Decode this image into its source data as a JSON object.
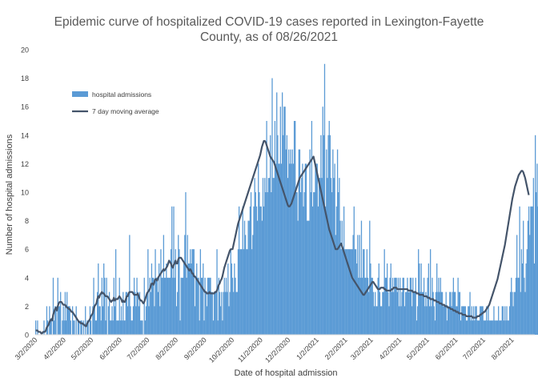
{
  "chart_data": {
    "type": "bar",
    "title_lines": [
      "Epidemic curve of hospitalized COVID-19 cases reported in Lexington-Fayette",
      "County, as of 08/26/2021"
    ],
    "xlabel": "Date of hospital admission",
    "ylabel": "Number of hospital admissions",
    "ylim": [
      0,
      20
    ],
    "yticks": [
      "0",
      "2",
      "4",
      "6",
      "8",
      "10",
      "12",
      "14",
      "16",
      "18",
      "20"
    ],
    "x_start_date": "2020-03-02",
    "x_end_date": "2021-08-26",
    "xticks": [
      "3/2/2020",
      "4/2/2020",
      "5/2/2020",
      "6/2/2020",
      "7/2/2020",
      "8/2/2020",
      "9/2/2020",
      "10/2/2020",
      "11/2/2020",
      "12/2/2020",
      "1/2/2021",
      "2/2/2021",
      "3/2/2021",
      "4/2/2021",
      "5/2/2021",
      "6/2/2021",
      "7/2/2021",
      "8/2/2021"
    ],
    "legend_position": "upper-left",
    "grid": false,
    "series": [
      {
        "name": "hospital admissions",
        "kind": "bar",
        "color": "#5b9bd5",
        "values": [
          1,
          0,
          1,
          0,
          0,
          0,
          0,
          0,
          0,
          1,
          0,
          0,
          2,
          1,
          0,
          2,
          1,
          1,
          0,
          4,
          1,
          2,
          2,
          0,
          4,
          2,
          2,
          3,
          0,
          1,
          2,
          1,
          3,
          1,
          3,
          2,
          2,
          2,
          1,
          0,
          2,
          1,
          1,
          0,
          2,
          0,
          1,
          1,
          0,
          1,
          1,
          0,
          1,
          0,
          2,
          0,
          1,
          1,
          0,
          2,
          1,
          0,
          2,
          4,
          2,
          1,
          1,
          3,
          5,
          2,
          2,
          1,
          4,
          2,
          5,
          4,
          1,
          4,
          0,
          2,
          3,
          1,
          1,
          2,
          1,
          4,
          2,
          6,
          1,
          1,
          1,
          4,
          1,
          2,
          1,
          3,
          1,
          1,
          3,
          3,
          2,
          3,
          7,
          2,
          1,
          1,
          2,
          4,
          3,
          2,
          4,
          3,
          2,
          3,
          1,
          1,
          1,
          0,
          4,
          1,
          2,
          3,
          6,
          2,
          4,
          3,
          5,
          4,
          4,
          2,
          6,
          4,
          4,
          3,
          5,
          2,
          6,
          4,
          4,
          7,
          4,
          4,
          5,
          4,
          4,
          4,
          4,
          6,
          9,
          4,
          9,
          4,
          6,
          2,
          3,
          7,
          6,
          1,
          4,
          4,
          4,
          5,
          7,
          10,
          4,
          7,
          5,
          5,
          6,
          5,
          6,
          6,
          6,
          2,
          4,
          5,
          4,
          4,
          1,
          6,
          4,
          4,
          5,
          1,
          4,
          3,
          2,
          4,
          4,
          4,
          4,
          3,
          3,
          1,
          3,
          3,
          3,
          6,
          1,
          4,
          3,
          2,
          3,
          1,
          3,
          4,
          3,
          4,
          3,
          5,
          2,
          3,
          6,
          5,
          4,
          3,
          5,
          4,
          3,
          3,
          6,
          9,
          6,
          6,
          6,
          9,
          6,
          8,
          7,
          6,
          6,
          8,
          8,
          9,
          10,
          6,
          7,
          9,
          11,
          10,
          9,
          8,
          12,
          10,
          9,
          9,
          8,
          11,
          9,
          11,
          10,
          15,
          10,
          11,
          11,
          14,
          10,
          18,
          11,
          11,
          15,
          12,
          17,
          14,
          12,
          12,
          16,
          12,
          17,
          14,
          16,
          16,
          13,
          14,
          11,
          13,
          12,
          13,
          12,
          13,
          12,
          15,
          15,
          10,
          10,
          8,
          13,
          13,
          10,
          11,
          12,
          9,
          10,
          12,
          12,
          8,
          8,
          8,
          13,
          10,
          15,
          9,
          10,
          10,
          12,
          12,
          12,
          9,
          11,
          11,
          14,
          11,
          16,
          14,
          19,
          9,
          13,
          11,
          14,
          15,
          14,
          11,
          10,
          13,
          11,
          12,
          7,
          9,
          13,
          10,
          11,
          8,
          6,
          8,
          6,
          9,
          6,
          6,
          6,
          6,
          6,
          6,
          6,
          6,
          6,
          7,
          9,
          6,
          6,
          5,
          7,
          4,
          7,
          4,
          8,
          4,
          6,
          6,
          4,
          4,
          6,
          4,
          3,
          8,
          5,
          4,
          4,
          3,
          2,
          3,
          2,
          2,
          4,
          5,
          3,
          2,
          2,
          3,
          3,
          6,
          4,
          4,
          5,
          3,
          2,
          4,
          5,
          3,
          4,
          3,
          4,
          4,
          4,
          3,
          4,
          2,
          4,
          2,
          3,
          4,
          4,
          2,
          3,
          3,
          4,
          3,
          3,
          4,
          4,
          2,
          4,
          3,
          3,
          4,
          1,
          2,
          6,
          5,
          3,
          5,
          3,
          3,
          4,
          2,
          3,
          2,
          4,
          5,
          2,
          6,
          2,
          4,
          3,
          2,
          1,
          3,
          5,
          3,
          4,
          3,
          4,
          3,
          3,
          2,
          2,
          2,
          3,
          1,
          2,
          2,
          3,
          3,
          2,
          3,
          4,
          3,
          3,
          2,
          2,
          4,
          3,
          3,
          1,
          2,
          2,
          2,
          2,
          2,
          1,
          1,
          2,
          2,
          3,
          1,
          2,
          1,
          2,
          1,
          2,
          2,
          1,
          1,
          1,
          2,
          2,
          2,
          2,
          1,
          1,
          1,
          2,
          1,
          2,
          1,
          1,
          1,
          1,
          1,
          2,
          1,
          1,
          1,
          1,
          2,
          1,
          1,
          1,
          2,
          2,
          1,
          2,
          1,
          2,
          1,
          1,
          2,
          3,
          4,
          3,
          2,
          3,
          3,
          4,
          7,
          4,
          4,
          9,
          3,
          6,
          5,
          8,
          4,
          3,
          5,
          6,
          8,
          9,
          7,
          9,
          9,
          9,
          11,
          5,
          14,
          10,
          12,
          9,
          6,
          10,
          10,
          16,
          11,
          5,
          17,
          10,
          16,
          11,
          5,
          14,
          9,
          1
        ]
      },
      {
        "name": "7 day moving average",
        "kind": "line",
        "color": "#44546a",
        "values": [
          0.3,
          0.3,
          0.3,
          0.2,
          0.2,
          0.2,
          0.1,
          0.1,
          0.2,
          0.2,
          0.2,
          0.3,
          0.5,
          0.6,
          0.7,
          0.9,
          1.0,
          1.1,
          1.0,
          1.4,
          1.6,
          1.8,
          1.9,
          1.7,
          2.0,
          2.2,
          2.3,
          2.3,
          2.3,
          2.2,
          2.1,
          2.1,
          2.1,
          2.0,
          1.9,
          1.9,
          1.8,
          1.8,
          1.7,
          1.6,
          1.6,
          1.5,
          1.4,
          1.3,
          1.2,
          1.1,
          1.0,
          0.9,
          0.9,
          0.8,
          0.8,
          0.8,
          0.7,
          0.7,
          0.6,
          0.6,
          0.8,
          0.9,
          1.0,
          1.1,
          1.3,
          1.4,
          1.5,
          1.8,
          2.0,
          2.1,
          2.2,
          2.5,
          2.7,
          2.6,
          2.8,
          2.9,
          3.0,
          2.9,
          2.9,
          2.8,
          2.7,
          2.7,
          2.7,
          2.6,
          2.5,
          2.4,
          2.3,
          2.4,
          2.4,
          2.6,
          2.4,
          2.5,
          2.5,
          2.5,
          2.6,
          2.7,
          2.6,
          2.5,
          2.3,
          2.4,
          2.3,
          2.3,
          2.5,
          2.7,
          2.7,
          2.9,
          3.0,
          3.0,
          3.0,
          3.0,
          2.9,
          2.8,
          2.8,
          2.8,
          2.8,
          2.9,
          2.7,
          2.5,
          2.4,
          2.4,
          2.3,
          2.2,
          2.3,
          2.5,
          2.7,
          2.9,
          3.0,
          3.1,
          3.2,
          3.4,
          3.6,
          3.6,
          3.5,
          3.7,
          3.9,
          3.9,
          3.8,
          4.0,
          4.1,
          4.2,
          4.3,
          4.4,
          4.5,
          4.6,
          4.5,
          4.6,
          4.7,
          4.8,
          5.0,
          5.2,
          5.1,
          5.0,
          4.8,
          4.7,
          4.9,
          5.0,
          5.2,
          5.0,
          5.0,
          5.3,
          5.4,
          5.4,
          5.4,
          5.3,
          5.2,
          5.1,
          5.0,
          4.9,
          4.8,
          4.7,
          4.6,
          4.5,
          4.6,
          4.5,
          4.3,
          4.3,
          4.1,
          4.1,
          4.0,
          3.9,
          3.8,
          3.7,
          3.6,
          3.5,
          3.4,
          3.3,
          3.2,
          3.1,
          3.0,
          3.0,
          2.9,
          2.9,
          2.9,
          3.0,
          2.9,
          2.9,
          2.9,
          2.9,
          2.9,
          3.0,
          3.0,
          3.1,
          3.3,
          3.5,
          3.6,
          3.8,
          3.9,
          4.1,
          4.4,
          4.7,
          4.9,
          5.1,
          5.3,
          5.5,
          5.7,
          5.9,
          6.0,
          6.0,
          6.0,
          6.3,
          6.6,
          6.9,
          7.2,
          7.5,
          7.8,
          8.0,
          8.2,
          8.4,
          8.6,
          8.8,
          9.0,
          9.2,
          9.4,
          9.6,
          9.8,
          10.0,
          10.2,
          10.4,
          10.6,
          10.8,
          11.0,
          11.2,
          11.4,
          11.6,
          11.8,
          12.0,
          12.2,
          12.4,
          12.6,
          12.9,
          13.2,
          13.4,
          13.6,
          13.6,
          13.5,
          13.3,
          13.1,
          12.9,
          12.7,
          12.5,
          12.4,
          12.3,
          12.2,
          12.1,
          11.9,
          11.7,
          11.5,
          11.3,
          11.1,
          10.9,
          10.7,
          10.5,
          10.3,
          10.1,
          9.9,
          9.7,
          9.5,
          9.3,
          9.1,
          9.0,
          9.0,
          9.1,
          9.2,
          9.4,
          9.6,
          9.8,
          10.0,
          10.2,
          10.4,
          10.6,
          10.8,
          11.0,
          11.1,
          11.2,
          11.3,
          11.4,
          11.5,
          11.6,
          11.7,
          11.8,
          11.9,
          12.0,
          12.1,
          12.2,
          12.3,
          12.4,
          12.5,
          12.2,
          11.9,
          11.6,
          11.3,
          11.0,
          10.7,
          10.4,
          10.1,
          9.8,
          9.5,
          9.2,
          8.9,
          8.6,
          8.3,
          8.0,
          7.7,
          7.4,
          7.2,
          7.0,
          6.8,
          6.6,
          6.4,
          6.2,
          6.0,
          6.0,
          6.0,
          6.1,
          6.2,
          6.3,
          6.4,
          6.2,
          6.0,
          5.8,
          5.6,
          5.4,
          5.2,
          5.0,
          4.8,
          4.6,
          4.4,
          4.2,
          4.0,
          3.9,
          3.8,
          3.7,
          3.6,
          3.5,
          3.4,
          3.3,
          3.2,
          3.1,
          3.0,
          2.9,
          2.8,
          2.8,
          2.9,
          3.0,
          3.1,
          3.2,
          3.3,
          3.4,
          3.5,
          3.6,
          3.7,
          3.7,
          3.6,
          3.5,
          3.4,
          3.3,
          3.2,
          3.2,
          3.2,
          3.3,
          3.3,
          3.3,
          3.3,
          3.2,
          3.2,
          3.1,
          3.1,
          3.1,
          3.1,
          3.1,
          3.1,
          3.2,
          3.2,
          3.3,
          3.3,
          3.3,
          3.3,
          3.2,
          3.2,
          3.2,
          3.2,
          3.2,
          3.2,
          3.2,
          3.2,
          3.2,
          3.2,
          3.2,
          3.2,
          3.1,
          3.1,
          3.1,
          3.1,
          3.1,
          3.0,
          3.0,
          3.0,
          3.0,
          2.9,
          2.9,
          2.9,
          2.8,
          2.8,
          2.8,
          2.8,
          2.8,
          2.7,
          2.7,
          2.7,
          2.7,
          2.6,
          2.6,
          2.6,
          2.5,
          2.5,
          2.5,
          2.5,
          2.4,
          2.4,
          2.4,
          2.3,
          2.3,
          2.3,
          2.2,
          2.2,
          2.2,
          2.1,
          2.1,
          2.1,
          2.0,
          2.0,
          2.0,
          1.9,
          1.9,
          1.9,
          1.8,
          1.8,
          1.8,
          1.7,
          1.7,
          1.7,
          1.6,
          1.6,
          1.6,
          1.5,
          1.5,
          1.5,
          1.5,
          1.4,
          1.4,
          1.4,
          1.4,
          1.3,
          1.3,
          1.3,
          1.3,
          1.3,
          1.3,
          1.3,
          1.2,
          1.2,
          1.2,
          1.2,
          1.2,
          1.3,
          1.3,
          1.3,
          1.4,
          1.4,
          1.5,
          1.5,
          1.6,
          1.6,
          1.7,
          1.8,
          1.9,
          2.0,
          2.1,
          2.3,
          2.5,
          2.7,
          2.9,
          3.1,
          3.3,
          3.5,
          3.7,
          3.9,
          4.2,
          4.5,
          4.8,
          5.1,
          5.4,
          5.7,
          6.0,
          6.3,
          6.7,
          7.1,
          7.5,
          7.9,
          8.3,
          8.7,
          9.1,
          9.5,
          9.8,
          10.1,
          10.4,
          10.6,
          10.8,
          11.0,
          11.2,
          11.3,
          11.4,
          11.5,
          11.5,
          11.4,
          11.2,
          11.0,
          10.7,
          10.4,
          10.1,
          9.8
        ]
      }
    ]
  }
}
